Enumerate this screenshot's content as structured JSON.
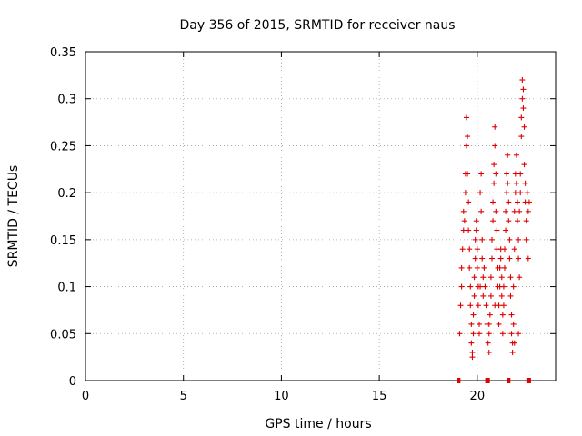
{
  "chart_data": {
    "type": "scatter",
    "title": "Day 356 of 2015, SRMTID for receiver naus",
    "xlabel": "GPS time / hours",
    "ylabel": "SRMTID / TECUs",
    "xlim": [
      0,
      24
    ],
    "ylim": [
      0,
      0.35
    ],
    "x_ticks": [
      0,
      5,
      10,
      15,
      20
    ],
    "y_ticks": [
      0,
      0.05,
      0.1,
      0.15,
      0.2,
      0.25,
      0.3,
      0.35
    ],
    "x_tick_labels": [
      "0",
      "5",
      "10",
      "15",
      "20"
    ],
    "y_tick_labels": [
      "0",
      "0.05",
      "0.1",
      "0.15",
      "0.2",
      "0.25",
      "0.3",
      "0.35"
    ],
    "grid": true,
    "marker": "plus",
    "series_color": "#e00000",
    "points": [
      [
        19.1,
        0.05
      ],
      [
        19.15,
        0.08
      ],
      [
        19.2,
        0.1
      ],
      [
        19.2,
        0.12
      ],
      [
        19.25,
        0.14
      ],
      [
        19.3,
        0.16
      ],
      [
        19.3,
        0.18
      ],
      [
        19.35,
        0.17
      ],
      [
        19.4,
        0.2
      ],
      [
        19.4,
        0.22
      ],
      [
        19.45,
        0.25
      ],
      [
        19.45,
        0.28
      ],
      [
        19.5,
        0.26
      ],
      [
        19.5,
        0.22
      ],
      [
        19.55,
        0.19
      ],
      [
        19.55,
        0.16
      ],
      [
        19.6,
        0.14
      ],
      [
        19.6,
        0.12
      ],
      [
        19.65,
        0.1
      ],
      [
        19.65,
        0.08
      ],
      [
        19.7,
        0.06
      ],
      [
        19.7,
        0.04
      ],
      [
        19.75,
        0.03
      ],
      [
        19.75,
        0.025
      ],
      [
        19.8,
        0.05
      ],
      [
        19.8,
        0.07
      ],
      [
        19.85,
        0.09
      ],
      [
        19.85,
        0.11
      ],
      [
        19.9,
        0.13
      ],
      [
        19.9,
        0.15
      ],
      [
        19.95,
        0.17
      ],
      [
        19.95,
        0.16
      ],
      [
        20.0,
        0.14
      ],
      [
        20.0,
        0.12
      ],
      [
        20.05,
        0.1
      ],
      [
        20.05,
        0.08
      ],
      [
        20.1,
        0.06
      ],
      [
        20.1,
        0.05
      ],
      [
        20.15,
        0.1
      ],
      [
        20.15,
        0.2
      ],
      [
        20.2,
        0.22
      ],
      [
        20.2,
        0.18
      ],
      [
        20.25,
        0.15
      ],
      [
        20.25,
        0.13
      ],
      [
        20.3,
        0.11
      ],
      [
        20.3,
        0.09
      ],
      [
        20.35,
        0.12
      ],
      [
        20.4,
        0.1
      ],
      [
        20.45,
        0.08
      ],
      [
        20.5,
        0.06
      ],
      [
        20.55,
        0.04
      ],
      [
        20.6,
        0.03
      ],
      [
        20.6,
        0.05
      ],
      [
        20.65,
        0.07
      ],
      [
        20.7,
        0.09
      ],
      [
        20.7,
        0.11
      ],
      [
        20.75,
        0.13
      ],
      [
        20.75,
        0.15
      ],
      [
        20.8,
        0.17
      ],
      [
        20.8,
        0.19
      ],
      [
        20.85,
        0.21
      ],
      [
        20.85,
        0.23
      ],
      [
        20.9,
        0.25
      ],
      [
        20.9,
        0.27
      ],
      [
        20.95,
        0.22
      ],
      [
        20.95,
        0.18
      ],
      [
        21.0,
        0.16
      ],
      [
        21.0,
        0.14
      ],
      [
        21.05,
        0.12
      ],
      [
        21.05,
        0.1
      ],
      [
        21.1,
        0.08
      ],
      [
        21.1,
        0.06
      ],
      [
        21.15,
        0.1
      ],
      [
        21.15,
        0.12
      ],
      [
        21.2,
        0.14
      ],
      [
        21.2,
        0.13
      ],
      [
        21.25,
        0.11
      ],
      [
        21.25,
        0.09
      ],
      [
        21.3,
        0.07
      ],
      [
        21.3,
        0.05
      ],
      [
        21.35,
        0.08
      ],
      [
        21.35,
        0.1
      ],
      [
        21.4,
        0.12
      ],
      [
        21.4,
        0.14
      ],
      [
        21.45,
        0.16
      ],
      [
        21.45,
        0.18
      ],
      [
        21.5,
        0.2
      ],
      [
        21.5,
        0.22
      ],
      [
        21.55,
        0.24
      ],
      [
        21.55,
        0.21
      ],
      [
        21.6,
        0.19
      ],
      [
        21.6,
        0.17
      ],
      [
        21.65,
        0.15
      ],
      [
        21.65,
        0.13
      ],
      [
        21.7,
        0.11
      ],
      [
        21.7,
        0.09
      ],
      [
        21.75,
        0.07
      ],
      [
        21.75,
        0.05
      ],
      [
        21.8,
        0.04
      ],
      [
        21.8,
        0.03
      ],
      [
        21.85,
        0.06
      ],
      [
        21.85,
        0.1
      ],
      [
        21.9,
        0.14
      ],
      [
        21.9,
        0.18
      ],
      [
        21.95,
        0.2
      ],
      [
        21.95,
        0.22
      ],
      [
        22.0,
        0.24
      ],
      [
        22.0,
        0.21
      ],
      [
        22.05,
        0.19
      ],
      [
        22.05,
        0.17
      ],
      [
        22.1,
        0.15
      ],
      [
        22.1,
        0.13
      ],
      [
        22.15,
        0.11
      ],
      [
        22.15,
        0.18
      ],
      [
        22.2,
        0.2
      ],
      [
        22.2,
        0.22
      ],
      [
        22.25,
        0.26
      ],
      [
        22.25,
        0.28
      ],
      [
        22.3,
        0.3
      ],
      [
        22.3,
        0.32
      ],
      [
        22.35,
        0.31
      ],
      [
        22.35,
        0.29
      ],
      [
        22.4,
        0.27
      ],
      [
        22.4,
        0.23
      ],
      [
        22.45,
        0.21
      ],
      [
        22.45,
        0.19
      ],
      [
        22.5,
        0.17
      ],
      [
        22.5,
        0.15
      ],
      [
        22.55,
        0.2
      ],
      [
        22.6,
        0.18
      ],
      [
        22.6,
        0.13
      ],
      [
        22.65,
        0.19
      ],
      [
        22.1,
        0.05
      ],
      [
        21.9,
        0.04
      ],
      [
        20.6,
        0.06
      ],
      [
        20.9,
        0.08
      ]
    ],
    "zero_points": [
      19.05,
      20.5,
      20.55,
      21.6,
      22.6,
      22.65
    ]
  }
}
